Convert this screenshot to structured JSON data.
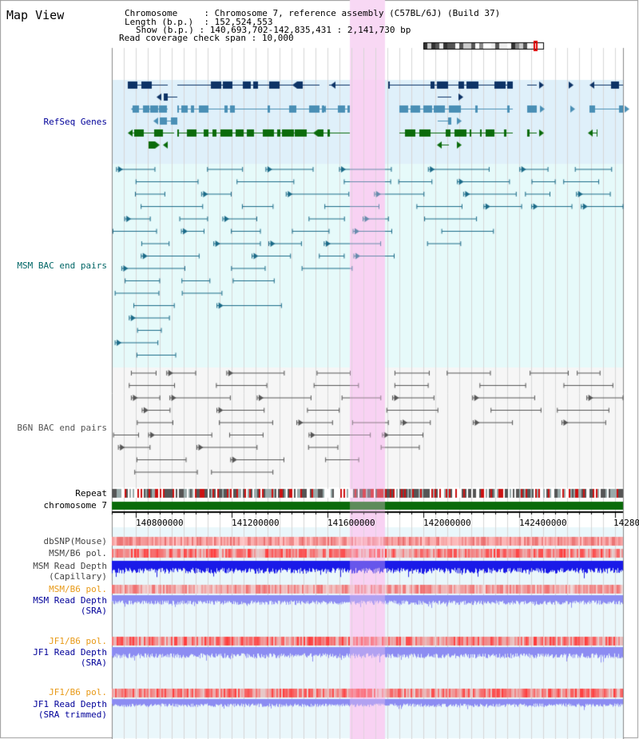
{
  "title": "Map View",
  "header": {
    "chromosome_label": "Chromosome",
    "chromosome_value": "Chromosome 7, reference assembly (C57BL/6J) (Build 37)",
    "length_label": "Length (b.p.)",
    "length_value": "152,524,553",
    "show_label": "Show (b.p.)",
    "show_value": "140,693,702-142,835,431 : 2,141,730 bp",
    "coverage_label": "Read coverage check span",
    "coverage_value": "10,000"
  },
  "tracks": {
    "refseq": "RefSeq Genes",
    "msm_bac": "MSM BAC end pairs",
    "b6n_bac": "B6N BAC end pairs",
    "repeat": "Repeat",
    "chromosome": "chromosome 7",
    "dbsnp": "dbSNP(Mouse)",
    "msm_b6_pol": "MSM/B6 pol.",
    "msm_read_depth_cap_1": "MSM Read Depth",
    "msm_read_depth_cap_2": "(Capillary)",
    "msm_b6_pol_sra": "MSM/B6 pol.",
    "msm_read_depth_sra_1": "MSM Read Depth",
    "msm_read_depth_sra_2": "(SRA)",
    "jf1_b6_pol": "JF1/B6 pol.",
    "jf1_read_depth_1": "JF1 Read Depth",
    "jf1_read_depth_2": "(SRA)",
    "jf1_b6_pol_trim": "JF1/B6 pol.",
    "jf1_read_depth_trim_1": "JF1 Read Depth",
    "jf1_read_depth_trim_2": "(SRA trimmed)"
  },
  "axis": {
    "ticks": [
      "140800000",
      "141200000",
      "141600000",
      "142000000",
      "142400000",
      "14280"
    ]
  },
  "colors": {
    "refseq_bg": "#dff0fa",
    "bac_bg": "#e6fafa",
    "b6n_bg": "#f6f6f6",
    "highlight": "#f8d8f4",
    "navy": "#0d3366",
    "steel": "#4a8fb5",
    "green": "#0b6b0b",
    "msm_line": "#1a6a88",
    "gray_line": "#555555",
    "depth_blue": "#1a1ae8",
    "depth_purple": "#8c8cf2",
    "pol_red": "#e83c3c",
    "label_orange": "#e89a18",
    "label_navy": "#000099",
    "label_teal": "#006666"
  }
}
